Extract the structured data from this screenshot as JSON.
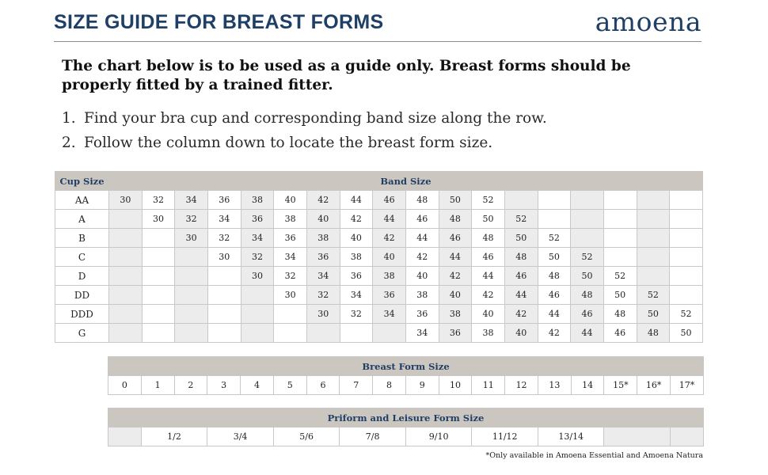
{
  "header": {
    "title": "SIZE GUIDE FOR BREAST FORMS",
    "logo": "amoena"
  },
  "intro": "The chart below is to be used as a guide only. Breast forms should be properly fitted by a trained fitter.",
  "steps": [
    {
      "num": "1.",
      "text": "Find your bra cup and corresponding band size along the row."
    },
    {
      "num": "2.",
      "text": "Follow the column down to locate the breast form size."
    }
  ],
  "cup_table": {
    "cup_header": "Cup Size",
    "band_header": "Band Size",
    "rows": [
      {
        "cup": "AA",
        "cells": [
          "30",
          "32",
          "34",
          "36",
          "38",
          "40",
          "42",
          "44",
          "46",
          "48",
          "50",
          "52",
          "",
          "",
          "",
          "",
          "",
          ""
        ]
      },
      {
        "cup": "A",
        "cells": [
          "",
          "30",
          "32",
          "34",
          "36",
          "38",
          "40",
          "42",
          "44",
          "46",
          "48",
          "50",
          "52",
          "",
          "",
          "",
          "",
          ""
        ]
      },
      {
        "cup": "B",
        "cells": [
          "",
          "",
          "30",
          "32",
          "34",
          "36",
          "38",
          "40",
          "42",
          "44",
          "46",
          "48",
          "50",
          "52",
          "",
          "",
          "",
          ""
        ]
      },
      {
        "cup": "C",
        "cells": [
          "",
          "",
          "",
          "30",
          "32",
          "34",
          "36",
          "38",
          "40",
          "42",
          "44",
          "46",
          "48",
          "50",
          "52",
          "",
          "",
          ""
        ]
      },
      {
        "cup": "D",
        "cells": [
          "",
          "",
          "",
          "",
          "30",
          "32",
          "34",
          "36",
          "38",
          "40",
          "42",
          "44",
          "46",
          "48",
          "50",
          "52",
          "",
          ""
        ]
      },
      {
        "cup": "DD",
        "cells": [
          "",
          "",
          "",
          "",
          "",
          "30",
          "32",
          "34",
          "36",
          "38",
          "40",
          "42",
          "44",
          "46",
          "48",
          "50",
          "52",
          ""
        ]
      },
      {
        "cup": "DDD",
        "cells": [
          "",
          "",
          "",
          "",
          "",
          "",
          "30",
          "32",
          "34",
          "36",
          "38",
          "40",
          "42",
          "44",
          "46",
          "48",
          "50",
          "52"
        ]
      },
      {
        "cup": "G",
        "cells": [
          "",
          "",
          "",
          "",
          "",
          "",
          "",
          "",
          "",
          "34",
          "36",
          "38",
          "40",
          "42",
          "44",
          "46",
          "48",
          "50"
        ]
      }
    ]
  },
  "breast_form_table": {
    "header": "Breast Form Size",
    "sizes": [
      "0",
      "1",
      "2",
      "3",
      "4",
      "5",
      "6",
      "7",
      "8",
      "9",
      "10",
      "11",
      "12",
      "13",
      "14",
      "15*",
      "16*",
      "17*"
    ]
  },
  "priform_table": {
    "header": "Priform and Leisure Form Size",
    "cells": [
      {
        "label": "",
        "span": 1
      },
      {
        "label": "1/2",
        "span": 2
      },
      {
        "label": "3/4",
        "span": 2
      },
      {
        "label": "5/6",
        "span": 2
      },
      {
        "label": "7/8",
        "span": 2
      },
      {
        "label": "9/10",
        "span": 2
      },
      {
        "label": "11/12",
        "span": 2
      },
      {
        "label": "13/14",
        "span": 2
      },
      {
        "label": "",
        "span": 2
      },
      {
        "label": "",
        "span": 1
      }
    ]
  },
  "footnote": "*Only available in Amoena Essential and Amoena Natura",
  "colors": {
    "brand_navy": "#1f3f64",
    "header_fill": "#ccc6c1",
    "shade_fill": "#ececec"
  }
}
